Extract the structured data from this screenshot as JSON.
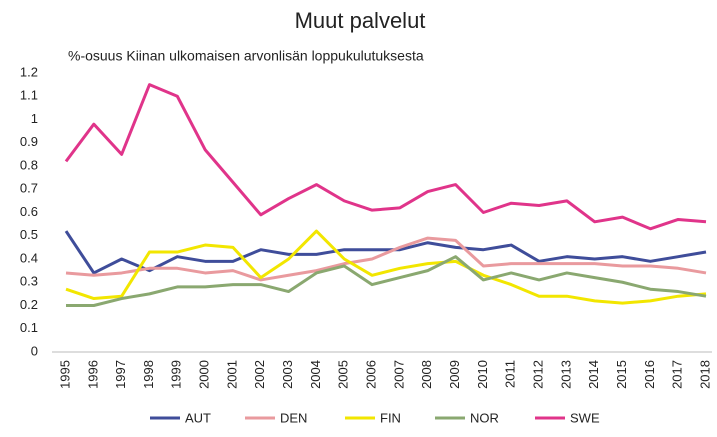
{
  "chart_data": {
    "type": "line",
    "title": "Muut palvelut",
    "subtitle": "%-osuus Kiinan ulkomaisen arvonlisän loppukulutuksesta",
    "categories": [
      "1995",
      "1996",
      "1997",
      "1998",
      "1999",
      "2000",
      "2001",
      "2002",
      "2003",
      "2004",
      "2005",
      "2006",
      "2007",
      "2008",
      "2009",
      "2010",
      "2011",
      "2012",
      "2013",
      "2014",
      "2015",
      "2016",
      "2017",
      "2018"
    ],
    "series": [
      {
        "name": "AUT",
        "color": "#3f4d9a",
        "values": [
          0.52,
          0.34,
          0.4,
          0.35,
          0.41,
          0.39,
          0.39,
          0.44,
          0.42,
          0.42,
          0.44,
          0.44,
          0.44,
          0.47,
          0.45,
          0.44,
          0.46,
          0.39,
          0.41,
          0.4,
          0.41,
          0.39,
          0.41,
          0.43
        ]
      },
      {
        "name": "DEN",
        "color": "#e99a9e",
        "values": [
          0.34,
          0.33,
          0.34,
          0.36,
          0.36,
          0.34,
          0.35,
          0.31,
          0.33,
          0.35,
          0.38,
          0.4,
          0.45,
          0.49,
          0.48,
          0.37,
          0.38,
          0.38,
          0.38,
          0.38,
          0.37,
          0.37,
          0.36,
          0.34
        ]
      },
      {
        "name": "FIN",
        "color": "#f2e600",
        "values": [
          0.27,
          0.23,
          0.24,
          0.43,
          0.43,
          0.46,
          0.45,
          0.32,
          0.4,
          0.52,
          0.4,
          0.33,
          0.36,
          0.38,
          0.39,
          0.33,
          0.29,
          0.24,
          0.24,
          0.22,
          0.21,
          0.22,
          0.24,
          0.25
        ]
      },
      {
        "name": "NOR",
        "color": "#8aa870",
        "values": [
          0.2,
          0.2,
          0.23,
          0.25,
          0.28,
          0.28,
          0.29,
          0.29,
          0.26,
          0.34,
          0.37,
          0.29,
          0.32,
          0.35,
          0.41,
          0.31,
          0.34,
          0.31,
          0.34,
          0.32,
          0.3,
          0.27,
          0.26,
          0.24
        ]
      },
      {
        "name": "SWE",
        "color": "#e0348a",
        "values": [
          0.82,
          0.98,
          0.85,
          1.15,
          1.1,
          0.87,
          0.73,
          0.59,
          0.66,
          0.72,
          0.65,
          0.61,
          0.62,
          0.69,
          0.72,
          0.6,
          0.64,
          0.63,
          0.65,
          0.56,
          0.58,
          0.53,
          0.57,
          0.56
        ]
      }
    ],
    "ylim": [
      0,
      1.2
    ],
    "yticks": [
      0,
      0.1,
      0.2,
      0.3,
      0.4,
      0.5,
      0.6,
      0.7,
      0.8,
      0.9,
      1,
      1.1,
      1.2
    ],
    "grid": false,
    "legend": "bottom"
  }
}
